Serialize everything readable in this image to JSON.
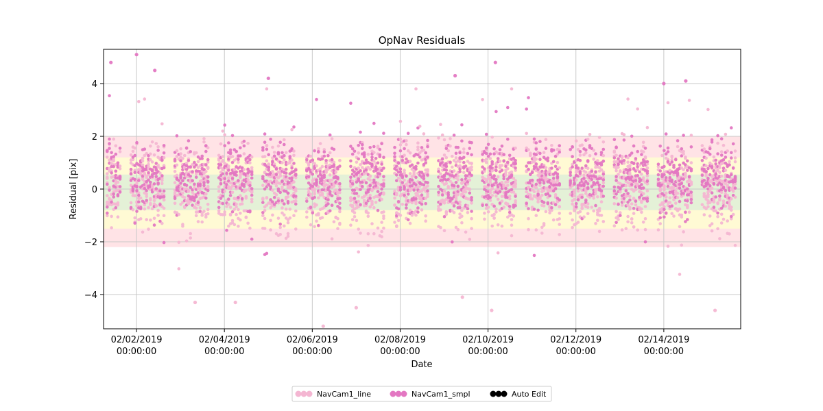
{
  "chart_data": {
    "type": "scatter",
    "title": "OpNav Residuals",
    "xlabel": "Date",
    "ylabel": "Residual [pix]",
    "x_ticks": [
      {
        "date": "2019-02-02",
        "line1": "02/02/2019",
        "line2": "00:00:00"
      },
      {
        "date": "2019-02-04",
        "line1": "02/04/2019",
        "line2": "00:00:00"
      },
      {
        "date": "2019-02-06",
        "line1": "02/06/2019",
        "line2": "00:00:00"
      },
      {
        "date": "2019-02-08",
        "line1": "02/08/2019",
        "line2": "00:00:00"
      },
      {
        "date": "2019-02-10",
        "line1": "02/10/2019",
        "line2": "00:00:00"
      },
      {
        "date": "2019-02-12",
        "line1": "02/12/2019",
        "line2": "00:00:00"
      },
      {
        "date": "2019-02-14",
        "line1": "02/14/2019",
        "line2": "00:00:00"
      }
    ],
    "y_ticks": [
      -4,
      -2,
      0,
      2,
      4
    ],
    "xlim": [
      "2019-02-01 06:00",
      "2019-02-15 18:00"
    ],
    "ylim": [
      -5.3,
      5.3
    ],
    "grid": true,
    "bands": [
      {
        "name": "red",
        "low": -2.2,
        "high": 2.0,
        "color": "#ffb0b8"
      },
      {
        "name": "yellow",
        "low": -1.5,
        "high": 1.2,
        "color": "#ffffd0"
      },
      {
        "name": "green",
        "low": -0.8,
        "high": 0.55,
        "color": "#d8ecd8"
      }
    ],
    "series": [
      {
        "name": "NavCam1_line",
        "color": "#f4b6d2"
      },
      {
        "name": "NavCam1_smpl",
        "color": "#e377c2"
      },
      {
        "name": "Auto Edit",
        "color": "#000000"
      }
    ],
    "observation_passes": [
      {
        "start": "2019-02-01 08:00",
        "end": "2019-02-01 15:00"
      },
      {
        "start": "2019-02-01 21:00",
        "end": "2019-02-02 15:00"
      },
      {
        "start": "2019-02-02 21:00",
        "end": "2019-02-03 15:00"
      },
      {
        "start": "2019-02-03 21:00",
        "end": "2019-02-04 15:00"
      },
      {
        "start": "2019-02-04 21:00",
        "end": "2019-02-05 15:00"
      },
      {
        "start": "2019-02-05 21:00",
        "end": "2019-02-06 15:00"
      },
      {
        "start": "2019-02-06 21:00",
        "end": "2019-02-07 15:00"
      },
      {
        "start": "2019-02-07 21:00",
        "end": "2019-02-08 15:00"
      },
      {
        "start": "2019-02-08 21:00",
        "end": "2019-02-09 15:00"
      },
      {
        "start": "2019-02-09 21:00",
        "end": "2019-02-10 15:00"
      },
      {
        "start": "2019-02-10 21:00",
        "end": "2019-02-11 15:00"
      },
      {
        "start": "2019-02-11 21:00",
        "end": "2019-02-12 15:00"
      },
      {
        "start": "2019-02-12 21:00",
        "end": "2019-02-13 15:00"
      },
      {
        "start": "2019-02-13 21:00",
        "end": "2019-02-14 15:00"
      },
      {
        "start": "2019-02-14 21:00",
        "end": "2019-02-15 15:00"
      }
    ],
    "outliers": [
      {
        "series": "NavCam1_smpl",
        "t": "2019-02-01 10:00",
        "y": 4.8
      },
      {
        "series": "NavCam1_smpl",
        "t": "2019-02-02 00:00",
        "y": 5.1
      },
      {
        "series": "NavCam1_smpl",
        "t": "2019-02-02 10:00",
        "y": 4.5
      },
      {
        "series": "NavCam1_smpl",
        "t": "2019-02-05 00:00",
        "y": 4.2
      },
      {
        "series": "NavCam1_smpl",
        "t": "2019-02-10 04:00",
        "y": 4.8
      },
      {
        "series": "NavCam1_smpl",
        "t": "2019-02-09 06:00",
        "y": 4.3
      },
      {
        "series": "NavCam1_smpl",
        "t": "2019-02-14 12:00",
        "y": 4.1
      },
      {
        "series": "NavCam1_smpl",
        "t": "2019-02-14 00:00",
        "y": 4.0
      },
      {
        "series": "NavCam1_line",
        "t": "2019-02-03 08:00",
        "y": -4.3
      },
      {
        "series": "NavCam1_line",
        "t": "2019-02-04 06:00",
        "y": -4.3
      },
      {
        "series": "NavCam1_line",
        "t": "2019-02-06 06:00",
        "y": -5.2
      },
      {
        "series": "NavCam1_line",
        "t": "2019-02-07 00:00",
        "y": -4.5
      },
      {
        "series": "NavCam1_line",
        "t": "2019-02-10 02:00",
        "y": -4.6
      },
      {
        "series": "NavCam1_line",
        "t": "2019-02-09 10:00",
        "y": -4.1
      },
      {
        "series": "NavCam1_line",
        "t": "2019-02-15 04:00",
        "y": -4.6
      }
    ],
    "legend_position": "bottom-center"
  }
}
